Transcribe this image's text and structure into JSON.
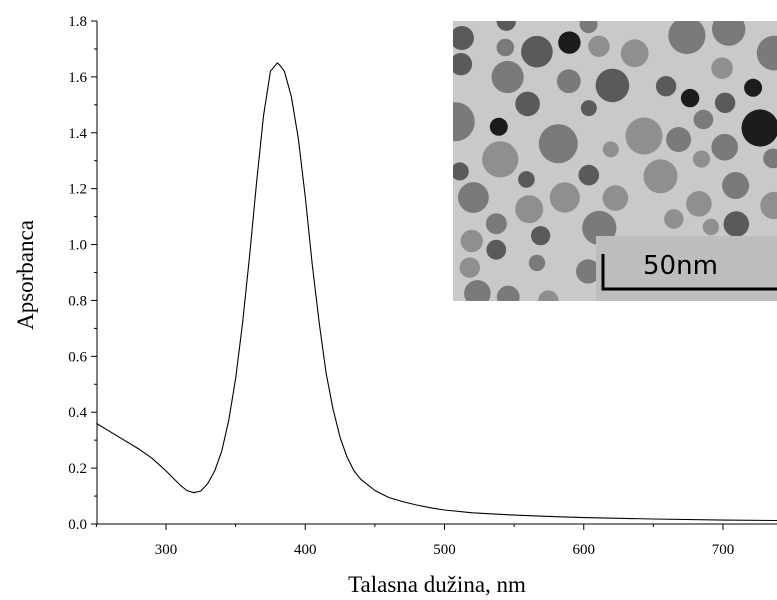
{
  "chart_data": {
    "type": "line",
    "xlabel": "Talasna dužina, nm",
    "ylabel": "Apsorbanca",
    "xlim": [
      250,
      750
    ],
    "ylim": [
      0.0,
      1.8
    ],
    "x_ticks": [
      300,
      400,
      500,
      600,
      700
    ],
    "x_tick_labels": [
      "300",
      "400",
      "500",
      "600",
      "700"
    ],
    "y_ticks": [
      0.0,
      0.2,
      0.4,
      0.6,
      0.8,
      1.0,
      1.2,
      1.4,
      1.6,
      1.8
    ],
    "y_tick_labels": [
      "0.0",
      "0.2",
      "0.4",
      "0.6",
      "0.8",
      "1.0",
      "1.2",
      "1.4",
      "1.6",
      "1.8"
    ],
    "grid": false,
    "series": [
      {
        "color": "#000000",
        "x": [
          250,
          260,
          270,
          280,
          290,
          300,
          305,
          310,
          315,
          320,
          325,
          330,
          335,
          340,
          345,
          350,
          355,
          360,
          365,
          370,
          375,
          380,
          382,
          385,
          390,
          395,
          400,
          405,
          410,
          415,
          420,
          425,
          430,
          435,
          440,
          445,
          450,
          460,
          470,
          480,
          490,
          500,
          520,
          550,
          580,
          600,
          650,
          700,
          750
        ],
        "y": [
          0.36,
          0.33,
          0.3,
          0.27,
          0.235,
          0.19,
          0.165,
          0.14,
          0.12,
          0.112,
          0.118,
          0.145,
          0.19,
          0.26,
          0.37,
          0.52,
          0.72,
          0.96,
          1.22,
          1.46,
          1.62,
          1.65,
          1.64,
          1.62,
          1.53,
          1.38,
          1.17,
          0.93,
          0.72,
          0.54,
          0.41,
          0.31,
          0.24,
          0.19,
          0.16,
          0.14,
          0.12,
          0.095,
          0.08,
          0.068,
          0.058,
          0.05,
          0.04,
          0.032,
          0.026,
          0.023,
          0.018,
          0.014,
          0.012
        ]
      }
    ],
    "inset": {
      "scale_bar_label": "50nm"
    }
  }
}
